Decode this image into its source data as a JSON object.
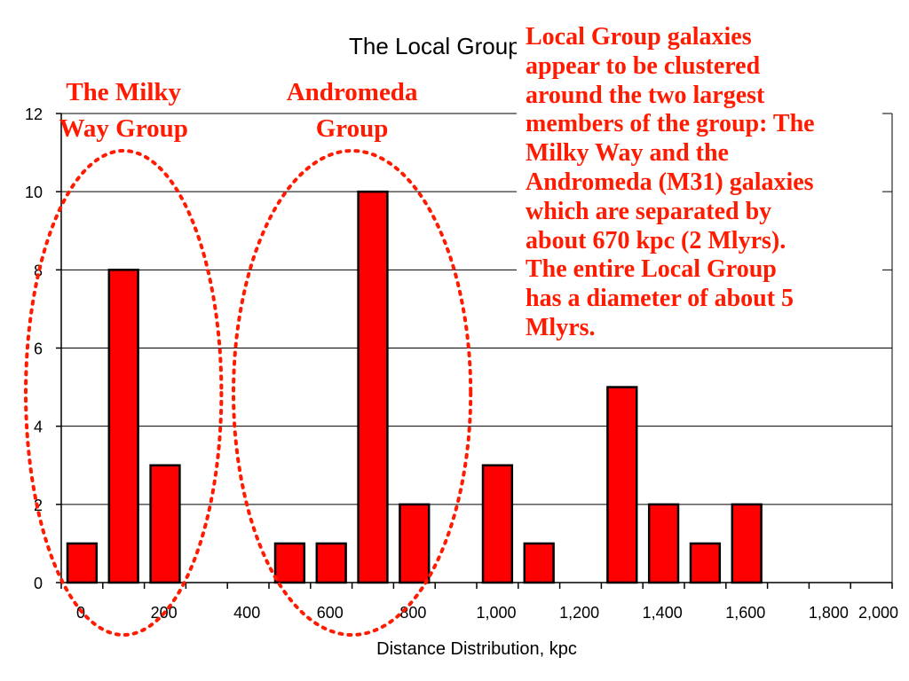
{
  "chart_data": {
    "type": "bar",
    "title": "The Local Group",
    "xlabel": "Distance Distribution, kpc",
    "ylabel": "",
    "xlim": [
      0,
      2000
    ],
    "ylim": [
      0,
      12
    ],
    "xticks": [
      "0",
      "200",
      "400",
      "600",
      "800",
      "1,000",
      "1,200",
      "1,400",
      "1,600",
      "1,800",
      "2,000"
    ],
    "yticks": [
      "0",
      "2",
      "4",
      "6",
      "8",
      "10",
      "12"
    ],
    "grid": true,
    "bin_width": 100,
    "bars": [
      {
        "x": 0,
        "value": 1
      },
      {
        "x": 100,
        "value": 8
      },
      {
        "x": 200,
        "value": 3
      },
      {
        "x": 500,
        "value": 1
      },
      {
        "x": 600,
        "value": 1
      },
      {
        "x": 700,
        "value": 10
      },
      {
        "x": 800,
        "value": 2
      },
      {
        "x": 1000,
        "value": 3
      },
      {
        "x": 1100,
        "value": 1
      },
      {
        "x": 1300,
        "value": 5
      },
      {
        "x": 1400,
        "value": 2
      },
      {
        "x": 1500,
        "value": 1
      },
      {
        "x": 1600,
        "value": 2
      }
    ],
    "bar_color": "#ff0000",
    "annotation_color": "#ff1a00",
    "groups": [
      {
        "label_lines": [
          "The Milky",
          "Way Group"
        ],
        "x_range": [
          0,
          300
        ]
      },
      {
        "label_lines": [
          "Andromeda",
          "Group"
        ],
        "x_range": [
          500,
          900
        ]
      }
    ],
    "callout_lines": [
      "Local Group galaxies",
      "appear to be clustered",
      "around the two largest",
      "members of the group: The",
      "Milky Way and the",
      "Andromeda (M31) galaxies",
      "which are separated by",
      "about 670 kpc (2 Mlyrs).",
      "The entire Local Group",
      "has a diameter of about 5",
      "Mlyrs."
    ]
  }
}
